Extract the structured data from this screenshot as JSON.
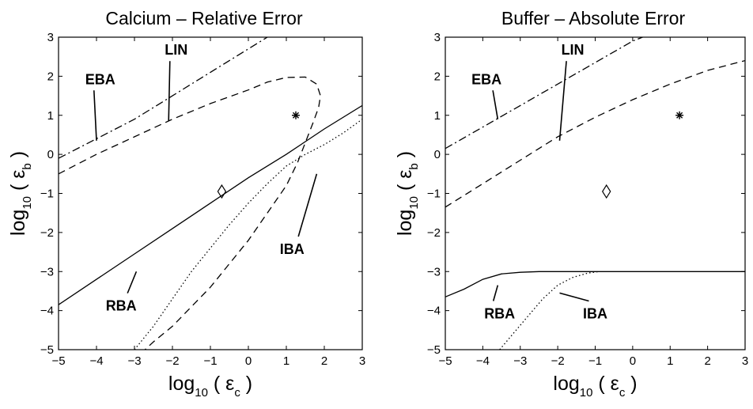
{
  "chart_data": [
    {
      "type": "line",
      "title": "Calcium – Relative Error",
      "xlabel": {
        "main": "log",
        "sub": "10",
        "arg": "( ε",
        "argsub": "c",
        "close": ")"
      },
      "ylabel": {
        "main": "log",
        "sub": "10",
        "arg": "( ε",
        "argsub": "b",
        "close": ")"
      },
      "xlim": [
        -5,
        3
      ],
      "ylim": [
        -5,
        3
      ],
      "xticks": [
        "−5",
        "−4",
        "−3",
        "−2",
        "−1",
        "0",
        "1",
        "2",
        "3"
      ],
      "yticks": [
        "3",
        "2",
        "1",
        "0",
        "−1",
        "−2",
        "−3",
        "−4",
        "−5"
      ],
      "grid": false,
      "series": [
        {
          "name": "EBA",
          "style": "dashdot",
          "x": [
            -5,
            -4,
            -3,
            -2,
            -1,
            0,
            0.5
          ],
          "y": [
            -0.1,
            0.4,
            0.9,
            1.5,
            2.1,
            2.7,
            3.0
          ]
        },
        {
          "name": "LIN",
          "style": "dashed",
          "x": [
            -5,
            -4,
            -3,
            -2,
            -1,
            0,
            0.5,
            1,
            1.5,
            1.8,
            1.9,
            1.85,
            1.7,
            1.5,
            1.3,
            1.0,
            0.5,
            0,
            -0.5,
            -1,
            -1.5,
            -2,
            -2.5,
            -3
          ],
          "y": [
            -0.5,
            0.0,
            0.45,
            0.9,
            1.3,
            1.65,
            1.85,
            1.97,
            1.98,
            1.8,
            1.5,
            1.2,
            0.8,
            0.3,
            -0.2,
            -0.8,
            -1.5,
            -2.2,
            -2.8,
            -3.4,
            -3.9,
            -4.4,
            -4.8,
            -5.25
          ]
        },
        {
          "name": "RBA",
          "style": "solid",
          "x": [
            -5,
            -4,
            -3,
            -2,
            -1,
            0,
            1,
            2,
            3
          ],
          "y": [
            -3.85,
            -3.2,
            -2.55,
            -1.9,
            -1.25,
            -0.6,
            0.0,
            0.65,
            1.25
          ]
        },
        {
          "name": "IBA",
          "style": "dotted",
          "x": [
            -3,
            -2.5,
            -2,
            -1.5,
            -1,
            -0.5,
            0,
            0.5,
            1,
            1.5,
            2,
            2.5,
            3
          ],
          "y": [
            -5.0,
            -4.4,
            -3.7,
            -3.0,
            -2.4,
            -1.8,
            -1.25,
            -0.75,
            -0.3,
            0.0,
            0.25,
            0.55,
            0.9
          ]
        }
      ],
      "annotations": [
        {
          "text": "EBA",
          "label_at": [
            -3.9,
            1.8
          ],
          "point": [
            -4.0,
            0.35
          ]
        },
        {
          "text": "LIN",
          "label_at": [
            -1.9,
            2.55
          ],
          "point": [
            -2.1,
            0.85
          ]
        },
        {
          "text": "IBA",
          "label_at": [
            1.15,
            -2.55
          ],
          "point": [
            1.8,
            -0.5
          ]
        },
        {
          "text": "RBA",
          "label_at": [
            -3.35,
            -4.0
          ],
          "point": [
            -2.95,
            -3.0
          ]
        }
      ],
      "markers": [
        {
          "symbol": "*",
          "x": 1.25,
          "y": 1.0
        },
        {
          "symbol": "◇",
          "x": -0.7,
          "y": -0.95
        }
      ]
    },
    {
      "type": "line",
      "title": "Buffer – Absolute Error",
      "xlabel": {
        "main": "log",
        "sub": "10",
        "arg": "( ε",
        "argsub": "c",
        "close": ")"
      },
      "ylabel": {
        "main": "log",
        "sub": "10",
        "arg": "( ε",
        "argsub": "b",
        "close": ")"
      },
      "xlim": [
        -5,
        3
      ],
      "ylim": [
        -5,
        3
      ],
      "xticks": [
        "−5",
        "−4",
        "−3",
        "−2",
        "−1",
        "0",
        "1",
        "2",
        "3"
      ],
      "yticks": [
        "3",
        "2",
        "1",
        "0",
        "−1",
        "−2",
        "−3",
        "−4",
        "−5"
      ],
      "grid": false,
      "series": [
        {
          "name": "EBA",
          "style": "dashdot",
          "x": [
            -5,
            -4,
            -3,
            -2,
            -1,
            0,
            0.4
          ],
          "y": [
            0.15,
            0.7,
            1.25,
            1.8,
            2.35,
            2.9,
            3.05
          ]
        },
        {
          "name": "LIN",
          "style": "dashed",
          "x": [
            -5,
            -4,
            -3,
            -2,
            -1,
            0,
            1,
            2,
            3
          ],
          "y": [
            -1.35,
            -0.75,
            -0.15,
            0.45,
            0.95,
            1.4,
            1.8,
            2.15,
            2.4
          ]
        },
        {
          "name": "RBA",
          "style": "solid",
          "x": [
            -5,
            -4.5,
            -4,
            -3.5,
            -3,
            -2.5,
            -2,
            -1,
            0,
            1,
            2,
            3
          ],
          "y": [
            -3.65,
            -3.45,
            -3.2,
            -3.06,
            -3.02,
            -3.0,
            -3.0,
            -3.0,
            -3.0,
            -3.0,
            -3.0,
            -3.0
          ]
        },
        {
          "name": "IBA",
          "style": "dotted",
          "x": [
            -3.55,
            -3.2,
            -2.8,
            -2.4,
            -2.0,
            -1.6,
            -1.2,
            -0.9
          ],
          "y": [
            -5.0,
            -4.6,
            -4.15,
            -3.7,
            -3.35,
            -3.15,
            -3.04,
            -3.0
          ]
        }
      ],
      "annotations": [
        {
          "text": "EBA",
          "label_at": [
            -3.9,
            1.8
          ],
          "point": [
            -3.6,
            0.9
          ]
        },
        {
          "text": "LIN",
          "label_at": [
            -1.6,
            2.55
          ],
          "point": [
            -1.95,
            0.35
          ]
        },
        {
          "text": "RBA",
          "label_at": [
            -3.55,
            -4.2
          ],
          "point": [
            -3.6,
            -3.35
          ]
        },
        {
          "text": "IBA",
          "label_at": [
            -1.0,
            -4.2
          ],
          "point": [
            -1.95,
            -3.55
          ]
        }
      ],
      "markers": [
        {
          "symbol": "*",
          "x": 1.25,
          "y": 1.0
        },
        {
          "symbol": "◇",
          "x": -0.7,
          "y": -0.95
        }
      ]
    }
  ]
}
